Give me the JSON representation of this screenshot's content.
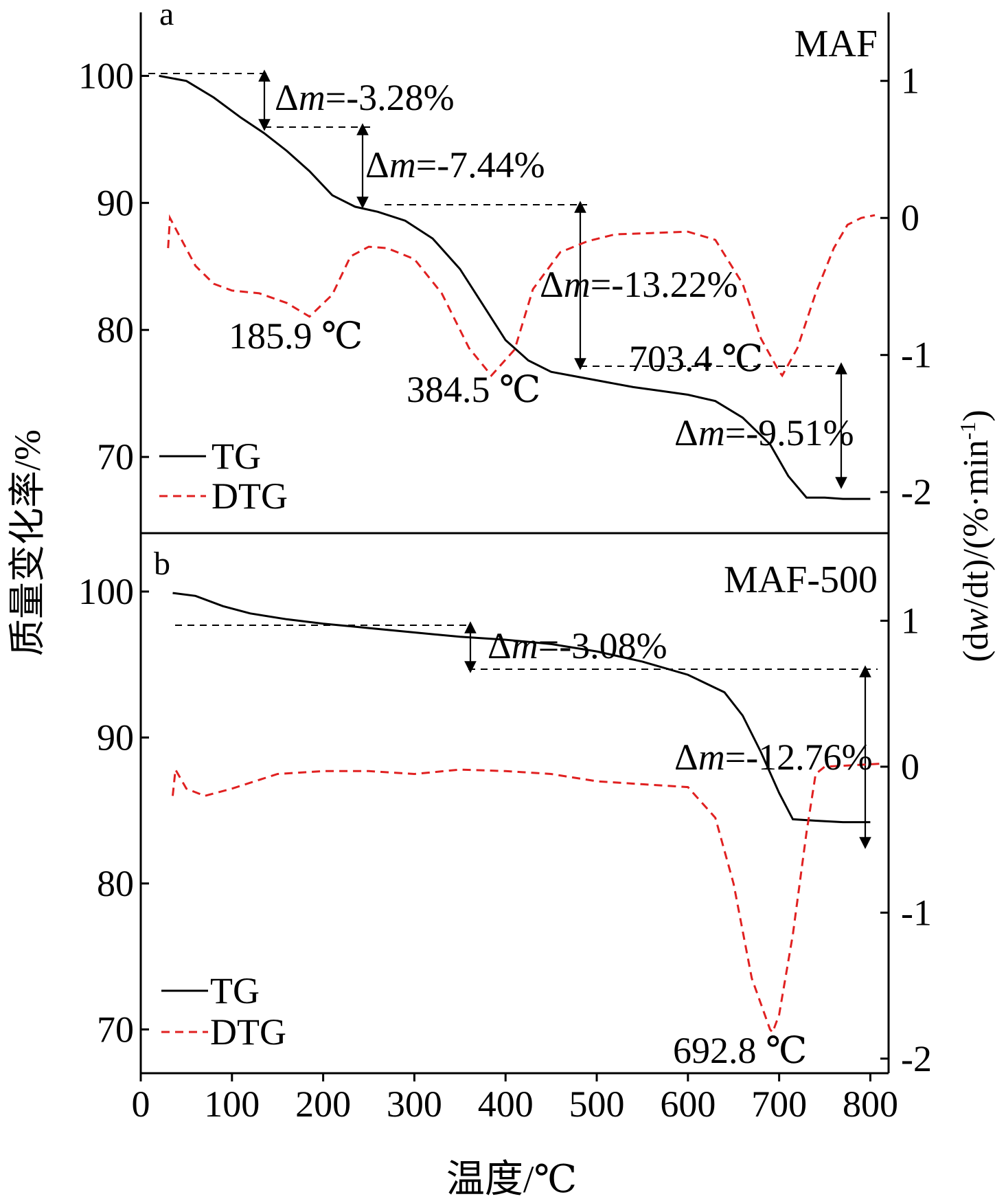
{
  "colors": {
    "tg": "#000000",
    "dtg": "#e02020",
    "axis": "#000000",
    "ref": "#000000"
  },
  "axes": {
    "x_label": "温度/℃",
    "y_left_label": "质量变化率/%",
    "y_right_label_pre": "(d",
    "y_right_label_w": "w",
    "y_right_label_mid": "/dt)/(%·min",
    "y_right_label_sup": "-1",
    "y_right_label_post": ")",
    "x_ticks": [
      "0",
      "100",
      "200",
      "300",
      "400",
      "500",
      "600",
      "700",
      "800"
    ]
  },
  "chart_data": [
    {
      "type": "line",
      "panel_letter": "a",
      "sample": "MAF",
      "x_range": [
        0,
        820
      ],
      "y_left_range": [
        64,
        105
      ],
      "y_right_range": [
        -2.3,
        1.5
      ],
      "y_left_ticks": [
        100,
        90,
        80,
        70
      ],
      "y_right_ticks": [
        1,
        0,
        -1,
        -2
      ],
      "legend": {
        "placement": "bottom-left",
        "tg": "TG",
        "dtg": "DTG"
      },
      "series": [
        {
          "name": "TG",
          "axis": "left",
          "style": "solid",
          "x": [
            20,
            50,
            80,
            110,
            135,
            160,
            185,
            210,
            235,
            260,
            290,
            320,
            350,
            375,
            400,
            425,
            450,
            480,
            510,
            540,
            570,
            600,
            630,
            660,
            690,
            710,
            730,
            750,
            770,
            800
          ],
          "y": [
            100.0,
            99.6,
            98.3,
            96.7,
            95.5,
            94.1,
            92.5,
            90.6,
            89.7,
            89.3,
            88.6,
            87.2,
            84.8,
            82.0,
            79.2,
            77.6,
            76.7,
            76.3,
            75.9,
            75.5,
            75.2,
            74.9,
            74.4,
            73.1,
            71.0,
            68.5,
            66.8,
            66.8,
            66.7,
            66.7
          ]
        },
        {
          "name": "DTG",
          "axis": "right",
          "style": "dashed",
          "x": [
            30,
            32,
            40,
            60,
            80,
            100,
            130,
            160,
            185,
            210,
            230,
            250,
            270,
            300,
            330,
            360,
            384.5,
            410,
            430,
            460,
            490,
            520,
            560,
            600,
            630,
            660,
            680,
            700,
            703.4,
            720,
            740,
            760,
            775,
            790,
            805
          ],
          "y": [
            -0.22,
            0.0,
            -0.1,
            -0.35,
            -0.48,
            -0.53,
            -0.55,
            -0.62,
            -0.72,
            -0.56,
            -0.28,
            -0.21,
            -0.22,
            -0.3,
            -0.55,
            -0.95,
            -1.15,
            -0.96,
            -0.52,
            -0.25,
            -0.17,
            -0.12,
            -0.11,
            -0.1,
            -0.16,
            -0.48,
            -0.88,
            -1.12,
            -1.15,
            -0.95,
            -0.55,
            -0.22,
            -0.05,
            0.0,
            0.02
          ]
        }
      ],
      "annotations": {
        "peak1": "185.9 ℃",
        "peak2": "384.5 ℃",
        "peak3": "703.4 ℃",
        "steps": [
          {
            "delta": "Δ",
            "m": "m",
            "value": "=-3.28%"
          },
          {
            "delta": "Δ",
            "m": "m",
            "value": "=-7.44%"
          },
          {
            "delta": "Δ",
            "m": "m",
            "value": "=-13.22%"
          },
          {
            "delta": "Δ",
            "m": "m",
            "value": "=-9.51%"
          }
        ]
      }
    },
    {
      "type": "line",
      "panel_letter": "b",
      "sample": "MAF-500",
      "x_range": [
        0,
        820
      ],
      "y_left_range": [
        67,
        104
      ],
      "y_right_range": [
        -2.1,
        1.6
      ],
      "y_left_ticks": [
        100,
        90,
        80,
        70
      ],
      "y_right_ticks": [
        1,
        0,
        -1,
        -2
      ],
      "legend": {
        "placement": "bottom-left",
        "tg": "TG",
        "dtg": "DTG"
      },
      "series": [
        {
          "name": "TG",
          "axis": "left",
          "style": "solid",
          "x": [
            35,
            60,
            90,
            120,
            160,
            200,
            250,
            300,
            350,
            400,
            450,
            500,
            550,
            600,
            640,
            660,
            680,
            700,
            715,
            740,
            770,
            800
          ],
          "y": [
            99.9,
            99.7,
            99.0,
            98.5,
            98.1,
            97.8,
            97.5,
            97.2,
            96.9,
            96.7,
            96.4,
            95.9,
            95.2,
            94.3,
            93.1,
            91.5,
            89.0,
            86.2,
            84.4,
            84.3,
            84.2,
            84.2
          ]
        },
        {
          "name": "DTG",
          "axis": "right",
          "style": "dashed",
          "x": [
            35,
            38,
            50,
            70,
            100,
            150,
            200,
            250,
            300,
            350,
            400,
            450,
            500,
            550,
            600,
            630,
            650,
            670,
            690,
            692.8,
            700,
            715,
            730,
            740,
            750,
            780,
            810
          ],
          "y": [
            -0.2,
            -0.02,
            -0.15,
            -0.2,
            -0.15,
            -0.05,
            -0.03,
            -0.03,
            -0.05,
            -0.02,
            -0.03,
            -0.05,
            -0.1,
            -0.12,
            -0.14,
            -0.35,
            -0.8,
            -1.45,
            -1.8,
            -1.82,
            -1.7,
            -1.15,
            -0.45,
            -0.05,
            0.0,
            0.01,
            0.02
          ]
        }
      ],
      "annotations": {
        "peak1": "692.8 ℃",
        "steps": [
          {
            "delta": "Δ",
            "m": "m",
            "value": "=-3.08%"
          },
          {
            "delta": "Δ",
            "m": "m",
            "value": "=-12.76%"
          }
        ]
      }
    }
  ]
}
